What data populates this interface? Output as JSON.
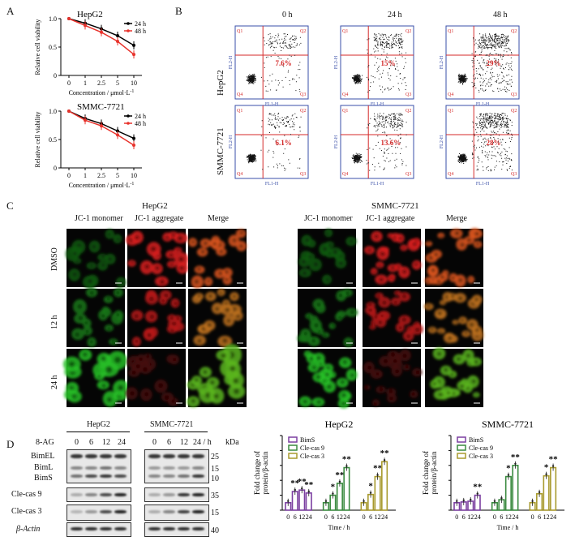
{
  "panels": {
    "a": "A",
    "b": "B",
    "c": "C",
    "d": "D"
  },
  "panelA": {
    "charts": [
      {
        "title": "HepG2",
        "ylabel": "Relative cell viability",
        "xlabel": "Concentration / μmol·L",
        "xlabel_sup": "-1",
        "legend": [
          "24 h",
          "48 h"
        ]
      },
      {
        "title": "SMMC-7721",
        "ylabel": "Relative cell viability",
        "xlabel": "Concentration / μmol·L",
        "xlabel_sup": "-1",
        "legend": [
          "24 h",
          "48 h"
        ]
      }
    ]
  },
  "chart_data": [
    {
      "type": "line",
      "title": "HepG2",
      "xlabel": "Concentration / μmol·L-1",
      "ylabel": "Relative cell viability",
      "x": [
        "0",
        "1",
        "2.5",
        "5",
        "10"
      ],
      "ylim": [
        0,
        1.0
      ],
      "yticks": [
        "0",
        "0.5",
        "1.0"
      ],
      "series": [
        {
          "name": "24 h",
          "color": "#000000",
          "values": [
            1.0,
            0.92,
            0.82,
            0.7,
            0.53
          ]
        },
        {
          "name": "48 h",
          "color": "#e8332c",
          "values": [
            1.0,
            0.88,
            0.76,
            0.6,
            0.37
          ]
        }
      ]
    },
    {
      "type": "line",
      "title": "SMMC-7721",
      "xlabel": "Concentration / μmol·L-1",
      "ylabel": "Relative cell viability",
      "x": [
        "0",
        "1",
        "2.5",
        "5",
        "10"
      ],
      "ylim": [
        0,
        1.0
      ],
      "yticks": [
        "0",
        "0.5",
        "1.0"
      ],
      "series": [
        {
          "name": "24 h",
          "color": "#000000",
          "values": [
            1.0,
            0.87,
            0.78,
            0.65,
            0.52
          ]
        },
        {
          "name": "48 h",
          "color": "#e8332c",
          "values": [
            1.0,
            0.84,
            0.74,
            0.58,
            0.4
          ]
        }
      ]
    },
    {
      "type": "bar",
      "title": "HepG2",
      "xlabel": "Time / h",
      "ylabel": "Fold change of protein/β-actin",
      "categories": [
        "0",
        "6",
        "12",
        "24"
      ],
      "ylim": [
        0,
        10
      ],
      "yticks": [
        "0",
        "2",
        "4",
        "6",
        "8",
        "10"
      ],
      "series": [
        {
          "name": "BimS",
          "color": "#7b3fa0",
          "values": [
            1.0,
            2.5,
            2.7,
            2.3
          ]
        },
        {
          "name": "Cle-cas 9",
          "color": "#3a8a3f",
          "values": [
            1.0,
            2.0,
            3.6,
            5.7
          ]
        },
        {
          "name": "Cle-cas 3",
          "color": "#a89a2e",
          "values": [
            1.0,
            2.1,
            4.5,
            6.5
          ]
        }
      ],
      "annotations": [
        [
          "",
          "**",
          "**",
          "**"
        ],
        [
          "",
          "*",
          "**",
          "**"
        ],
        [
          "",
          "*",
          "**",
          "**"
        ]
      ]
    },
    {
      "type": "bar",
      "title": "SMMC-7721",
      "xlabel": "Time / h",
      "ylabel": "Fold change of protein/β-actin",
      "categories": [
        "0",
        "6",
        "12",
        "24"
      ],
      "ylim": [
        0,
        10
      ],
      "yticks": [
        "0",
        "2",
        "4",
        "6",
        "8",
        "10"
      ],
      "series": [
        {
          "name": "BimS",
          "color": "#7b3fa0",
          "values": [
            1.0,
            1.1,
            1.2,
            2.0
          ]
        },
        {
          "name": "Cle-cas 9",
          "color": "#3a8a3f",
          "values": [
            1.0,
            1.4,
            4.5,
            6.0
          ]
        },
        {
          "name": "Cle-cas 3",
          "color": "#a89a2e",
          "values": [
            1.0,
            2.2,
            4.6,
            5.7
          ]
        }
      ],
      "annotations": [
        [
          "",
          "",
          "",
          "**"
        ],
        [
          "",
          "",
          "*",
          "**"
        ],
        [
          "",
          "",
          "*",
          "**"
        ]
      ]
    }
  ],
  "panelB": {
    "cols": [
      "0 h",
      "24 h",
      "48 h"
    ],
    "rows": [
      "HepG2",
      "SMMC-7721"
    ],
    "percents": [
      [
        "7.6%",
        "15%",
        "29%"
      ],
      [
        "6.1%",
        "13.6%",
        "28%"
      ]
    ],
    "quad_labels": [
      "Q1",
      "Q2",
      "Q3",
      "Q4"
    ],
    "axis_x": "FL1-H",
    "axis_y": "FL2-H"
  },
  "panelC": {
    "groups": [
      {
        "title": "HepG2",
        "cols": [
          "JC-1 monomer",
          "JC-1 aggregate",
          "Merge"
        ]
      },
      {
        "title": "SMMC-7721",
        "cols": [
          "JC-1 monomer",
          "JC-1 aggregate",
          "Merge"
        ]
      }
    ],
    "rows": [
      "DMSO",
      "12 h",
      "24 h"
    ]
  },
  "panelD": {
    "treat": "8-AG",
    "cells": [
      "HepG2",
      "SMMC-7721"
    ],
    "lanes_hep": [
      "0",
      "6",
      "12",
      "24"
    ],
    "lanes_smmc": [
      "0",
      "6",
      "12",
      "24 / h"
    ],
    "kda": "kDa",
    "proteins": [
      "BimEL",
      "BimL",
      "BimS",
      "Cle-cas 9",
      "Cle-cas 3",
      "β-Actin"
    ],
    "markers": [
      "25",
      "15",
      "10",
      "35",
      "15",
      "40"
    ]
  }
}
